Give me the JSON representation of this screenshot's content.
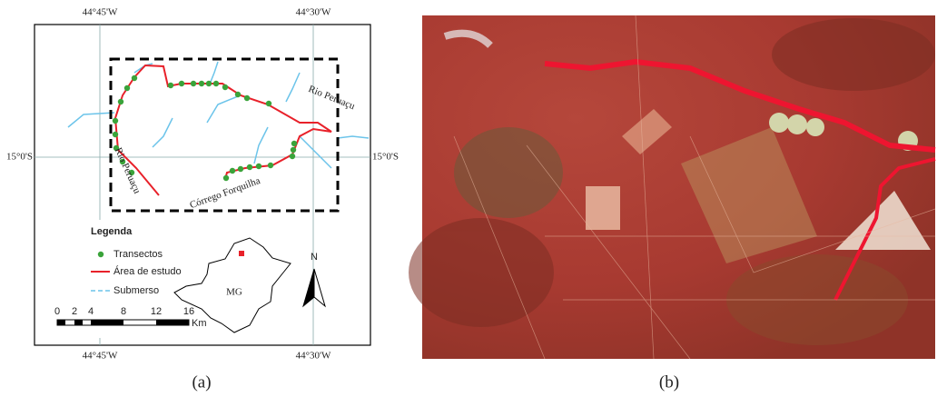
{
  "panel_a": {
    "longitudes": [
      "44°45'W",
      "44°30'W"
    ],
    "latitude": "15°0'S",
    "rivers": {
      "peruacu": "Rio Peruaçu",
      "forquilha": "Córrego Forquilha"
    },
    "legend": {
      "title": "Legenda",
      "items": [
        "Transectos",
        "Área de estudo",
        "Submerso"
      ]
    },
    "scale_bar": {
      "ticks": [
        "0",
        "2",
        "4",
        "8",
        "12",
        "16"
      ],
      "unit": "Km"
    },
    "state": "MG",
    "north": "N",
    "caption": "(a)"
  },
  "panel_b": {
    "caption": "(b)"
  }
}
